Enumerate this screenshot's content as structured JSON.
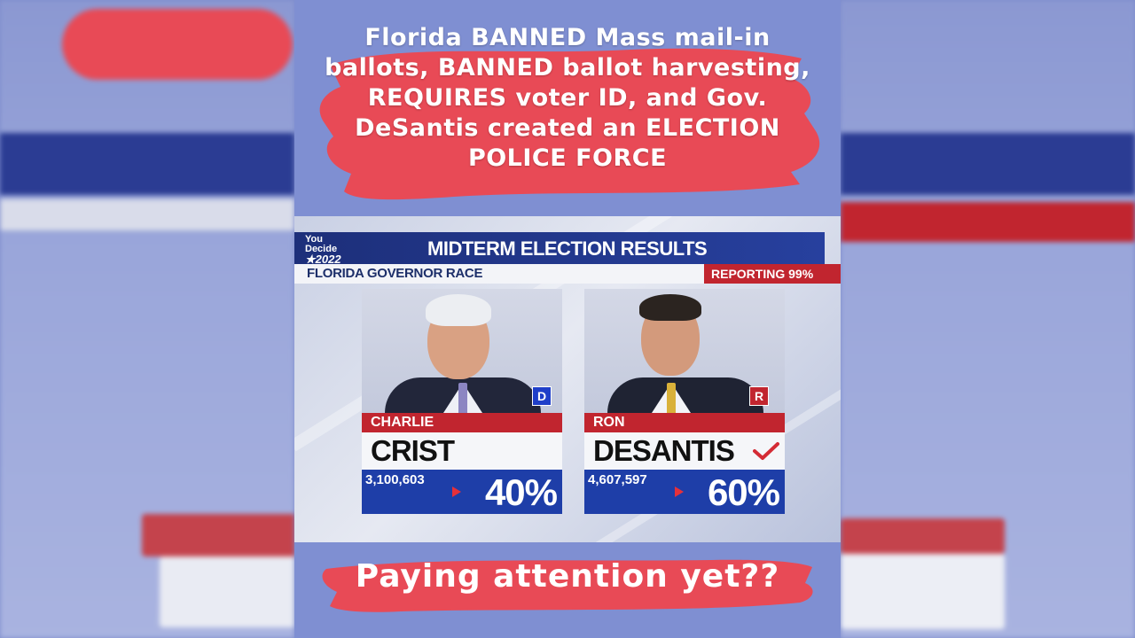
{
  "headline": "Florida BANNED Mass mail-in ballots, BANNED ballot harvesting, REQUIRES voter ID, and Gov. DeSantis created an ELECTION POLICE FORCE",
  "bottom_text": "Paying attention yet??",
  "broadcast": {
    "logo_top": "You",
    "logo_mid": "Decide",
    "logo_year": "★2022",
    "title": "MIDTERM ELECTION RESULTS",
    "race": "FLORIDA GOVERNOR RACE",
    "reporting": "REPORTING 99%"
  },
  "candidates": [
    {
      "first": "CHARLIE",
      "last": "CRIST",
      "party": "D",
      "votes": "3,100,603",
      "percent": "40%",
      "winner": false
    },
    {
      "first": "RON",
      "last": "DESANTIS",
      "party": "R",
      "votes": "4,607,597",
      "percent": "60%",
      "winner": true
    }
  ],
  "colors": {
    "background": "#7f8fd2",
    "brush_red": "#e84a56",
    "fox_blue": "#1e3ea8",
    "fox_red": "#c1252f",
    "democrat": "#1f3fc9",
    "check": "#d42b35"
  }
}
